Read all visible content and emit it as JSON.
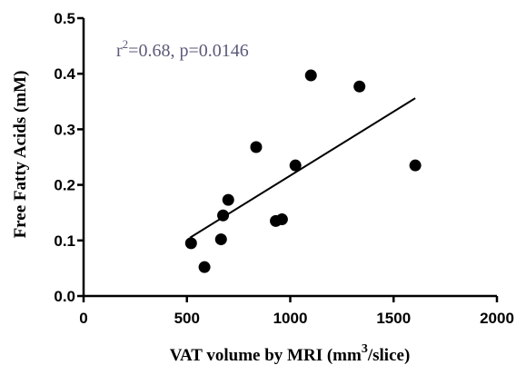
{
  "chart_data": {
    "type": "scatter",
    "xlabel_main": "VAT volume by MRI (mm",
    "xlabel_sup": "3",
    "xlabel_end": "/slice)",
    "ylabel": "Free Fatty Acids (mM)",
    "xlim": [
      0,
      2000
    ],
    "ylim": [
      0,
      0.5
    ],
    "x_ticks": [
      "0",
      "500",
      "1000",
      "1500",
      "2000"
    ],
    "y_ticks": [
      "0.0",
      "0.1",
      "0.2",
      "0.3",
      "0.4",
      "0.5"
    ],
    "grid": false,
    "annotation": {
      "prefix": "r",
      "sup": "2",
      "rest": "=0.68, p=0.0146",
      "color": "#5a5a7a"
    },
    "points": [
      {
        "x": 520,
        "y": 0.095
      },
      {
        "x": 585,
        "y": 0.052
      },
      {
        "x": 665,
        "y": 0.102
      },
      {
        "x": 675,
        "y": 0.145
      },
      {
        "x": 700,
        "y": 0.173
      },
      {
        "x": 835,
        "y": 0.268
      },
      {
        "x": 930,
        "y": 0.135
      },
      {
        "x": 960,
        "y": 0.138
      },
      {
        "x": 1025,
        "y": 0.235
      },
      {
        "x": 1100,
        "y": 0.397
      },
      {
        "x": 1335,
        "y": 0.377
      },
      {
        "x": 1605,
        "y": 0.235
      }
    ],
    "fit_line": {
      "x": [
        515,
        1605
      ],
      "y": [
        0.105,
        0.356
      ]
    }
  }
}
